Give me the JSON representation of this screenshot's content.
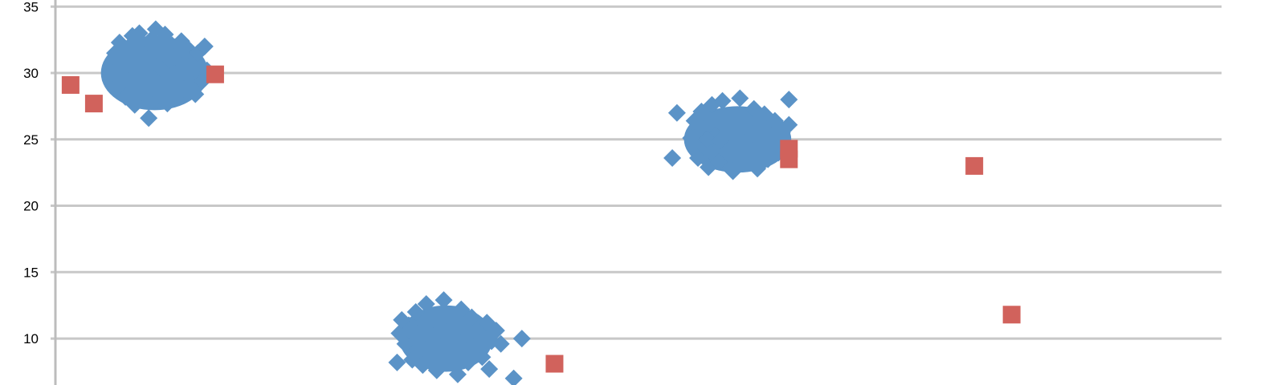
{
  "chart_data": {
    "type": "scatter",
    "title": "",
    "xlabel": "",
    "ylabel": "",
    "ylim": [
      6.5,
      35.5
    ],
    "xlim": [
      0,
      100
    ],
    "y_ticks": [
      "10",
      "15",
      "20",
      "25",
      "30",
      "35"
    ],
    "grid": true,
    "colors": {
      "series_a": "#5b93c7",
      "series_b": "#d1625c"
    },
    "clusters": [
      {
        "cx": 8.5,
        "cy": 30.0,
        "rx": 4.6,
        "ry": 2.8
      },
      {
        "cx": 33.5,
        "cy": 10.0,
        "rx": 4.0,
        "ry": 2.5
      },
      {
        "cx": 58.5,
        "cy": 25.0,
        "rx": 4.6,
        "ry": 2.5
      }
    ],
    "series": [
      {
        "marker": "diamond",
        "color": "#5b93c7",
        "points": [
          [
            4.9,
            30.0
          ],
          [
            5.1,
            31.5
          ],
          [
            5.3,
            28.9
          ],
          [
            5.5,
            32.3
          ],
          [
            5.8,
            30.4
          ],
          [
            6.0,
            28.2
          ],
          [
            6.2,
            31.9
          ],
          [
            6.4,
            29.3
          ],
          [
            6.6,
            32.8
          ],
          [
            6.8,
            27.6
          ],
          [
            7.0,
            30.9
          ],
          [
            7.2,
            33.0
          ],
          [
            7.4,
            28.6
          ],
          [
            7.6,
            31.3
          ],
          [
            7.8,
            29.7
          ],
          [
            8.0,
            26.6
          ],
          [
            8.2,
            32.5
          ],
          [
            8.4,
            30.2
          ],
          [
            8.6,
            33.3
          ],
          [
            8.8,
            28.0
          ],
          [
            9.0,
            31.6
          ],
          [
            9.2,
            29.0
          ],
          [
            9.4,
            32.9
          ],
          [
            9.6,
            27.7
          ],
          [
            9.8,
            30.6
          ],
          [
            10.0,
            32.1
          ],
          [
            10.2,
            28.4
          ],
          [
            10.4,
            31.0
          ],
          [
            10.6,
            29.5
          ],
          [
            10.8,
            32.4
          ],
          [
            11.0,
            28.8
          ],
          [
            11.2,
            30.8
          ],
          [
            11.4,
            31.8
          ],
          [
            11.6,
            29.2
          ],
          [
            11.8,
            30.4
          ],
          [
            12.0,
            28.4
          ],
          [
            12.2,
            31.5
          ],
          [
            12.6,
            29.4
          ],
          [
            13.0,
            30.2
          ],
          [
            12.8,
            32.0
          ],
          [
            5.6,
            29.6
          ],
          [
            6.3,
            30.7
          ],
          [
            7.1,
            29.8
          ],
          [
            7.9,
            31.1
          ],
          [
            8.7,
            29.4
          ],
          [
            9.5,
            30.9
          ],
          [
            10.3,
            29.9
          ],
          [
            11.1,
            30.1
          ],
          [
            7.5,
            30.1
          ],
          [
            9.1,
            30.3
          ],
          [
            6.9,
            31.4
          ],
          [
            8.3,
            28.9
          ],
          [
            10.1,
            31.2
          ],
          [
            9.9,
            29.0
          ],
          [
            30.0,
            9.6
          ],
          [
            30.3,
            11.0
          ],
          [
            30.6,
            8.4
          ],
          [
            30.9,
            12.0
          ],
          [
            31.2,
            10.2
          ],
          [
            31.5,
            8.0
          ],
          [
            31.8,
            12.6
          ],
          [
            32.1,
            9.0
          ],
          [
            32.4,
            11.5
          ],
          [
            32.7,
            7.6
          ],
          [
            33.0,
            10.6
          ],
          [
            33.3,
            12.9
          ],
          [
            33.6,
            8.6
          ],
          [
            33.9,
            11.2
          ],
          [
            34.2,
            9.4
          ],
          [
            34.5,
            7.3
          ],
          [
            34.8,
            12.2
          ],
          [
            35.1,
            10.0
          ],
          [
            35.4,
            8.2
          ],
          [
            35.7,
            11.6
          ],
          [
            36.0,
            9.2
          ],
          [
            36.3,
            10.8
          ],
          [
            36.6,
            8.6
          ],
          [
            37.0,
            11.2
          ],
          [
            37.4,
            9.8
          ],
          [
            37.8,
            10.6
          ],
          [
            38.2,
            9.6
          ],
          [
            29.5,
            10.4
          ],
          [
            31.0,
            9.8
          ],
          [
            32.3,
            10.2
          ],
          [
            33.8,
            9.9
          ],
          [
            35.2,
            10.4
          ],
          [
            36.4,
            9.6
          ],
          [
            34.0,
            10.3
          ],
          [
            32.8,
            9.4
          ],
          [
            33.5,
            11.8
          ],
          [
            37.2,
            7.7
          ],
          [
            29.3,
            8.2
          ],
          [
            29.7,
            11.4
          ],
          [
            40.0,
            10.0
          ],
          [
            39.3,
            7.0
          ],
          [
            54.5,
            25.1
          ],
          [
            54.8,
            26.4
          ],
          [
            55.1,
            23.6
          ],
          [
            55.4,
            27.1
          ],
          [
            55.7,
            24.4
          ],
          [
            56.0,
            22.9
          ],
          [
            56.3,
            27.6
          ],
          [
            56.6,
            25.3
          ],
          [
            56.9,
            23.3
          ],
          [
            57.2,
            27.9
          ],
          [
            57.5,
            24.7
          ],
          [
            57.8,
            26.7
          ],
          [
            58.1,
            22.6
          ],
          [
            58.4,
            25.9
          ],
          [
            58.7,
            28.1
          ],
          [
            59.0,
            23.8
          ],
          [
            59.3,
            26.2
          ],
          [
            59.6,
            24.1
          ],
          [
            59.9,
            27.3
          ],
          [
            60.2,
            22.8
          ],
          [
            60.5,
            25.6
          ],
          [
            60.8,
            26.9
          ],
          [
            61.1,
            23.5
          ],
          [
            61.4,
            25.2
          ],
          [
            61.7,
            26.4
          ],
          [
            62.0,
            24.0
          ],
          [
            62.3,
            25.5
          ],
          [
            62.6,
            23.9
          ],
          [
            62.9,
            26.1
          ],
          [
            55.9,
            25.0
          ],
          [
            57.0,
            24.9
          ],
          [
            58.2,
            24.6
          ],
          [
            59.4,
            25.0
          ],
          [
            60.6,
            24.8
          ],
          [
            61.6,
            24.6
          ],
          [
            57.6,
            25.6
          ],
          [
            59.8,
            25.4
          ],
          [
            58.8,
            24.2
          ],
          [
            53.3,
            27.0
          ],
          [
            52.9,
            23.6
          ],
          [
            62.9,
            28.0
          ]
        ]
      },
      {
        "marker": "square",
        "color": "#d1625c",
        "points": [
          [
            1.3,
            29.1
          ],
          [
            3.3,
            27.7
          ],
          [
            13.7,
            29.9
          ],
          [
            42.8,
            8.1
          ],
          [
            62.9,
            23.5
          ],
          [
            62.9,
            24.3
          ],
          [
            78.8,
            23.0
          ],
          [
            82.0,
            11.8
          ]
        ]
      }
    ]
  }
}
